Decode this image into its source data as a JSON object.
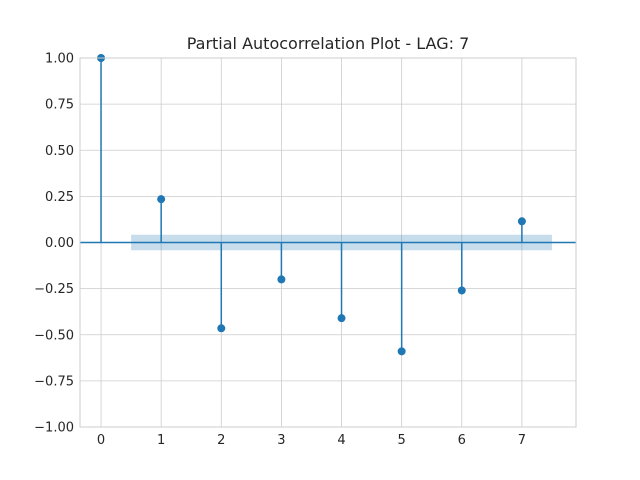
{
  "chart_data": {
    "type": "stem",
    "title": "Partial Autocorrelation Plot - LAG: 7",
    "xlabel": "",
    "ylabel": "",
    "lags": [
      0,
      1,
      2,
      3,
      4,
      5,
      6,
      7
    ],
    "values": [
      1.0,
      0.235,
      -0.465,
      -0.2,
      -0.41,
      -0.59,
      -0.26,
      0.115
    ],
    "confidence_band": {
      "lower": -0.042,
      "upper": 0.042,
      "x_start": 0.5,
      "x_end": 7.5
    },
    "xlim": [
      -0.35,
      7.9
    ],
    "ylim": [
      -1.0,
      1.0
    ],
    "xticks": [
      "0",
      "1",
      "2",
      "3",
      "4",
      "5",
      "6",
      "7"
    ],
    "yticks": [
      "1.00",
      "0.75",
      "0.50",
      "0.25",
      "0.00",
      "−0.25",
      "−0.50",
      "−0.75",
      "−1.00"
    ],
    "ytick_values": [
      1.0,
      0.75,
      0.5,
      0.25,
      0.0,
      -0.25,
      -0.5,
      -0.75,
      -1.0
    ],
    "grid": true,
    "colors": {
      "stem": "#1f77b4",
      "band": "#1f77b4",
      "grid": "#cccccc",
      "axis": "#cccccc",
      "text": "#262626"
    }
  }
}
